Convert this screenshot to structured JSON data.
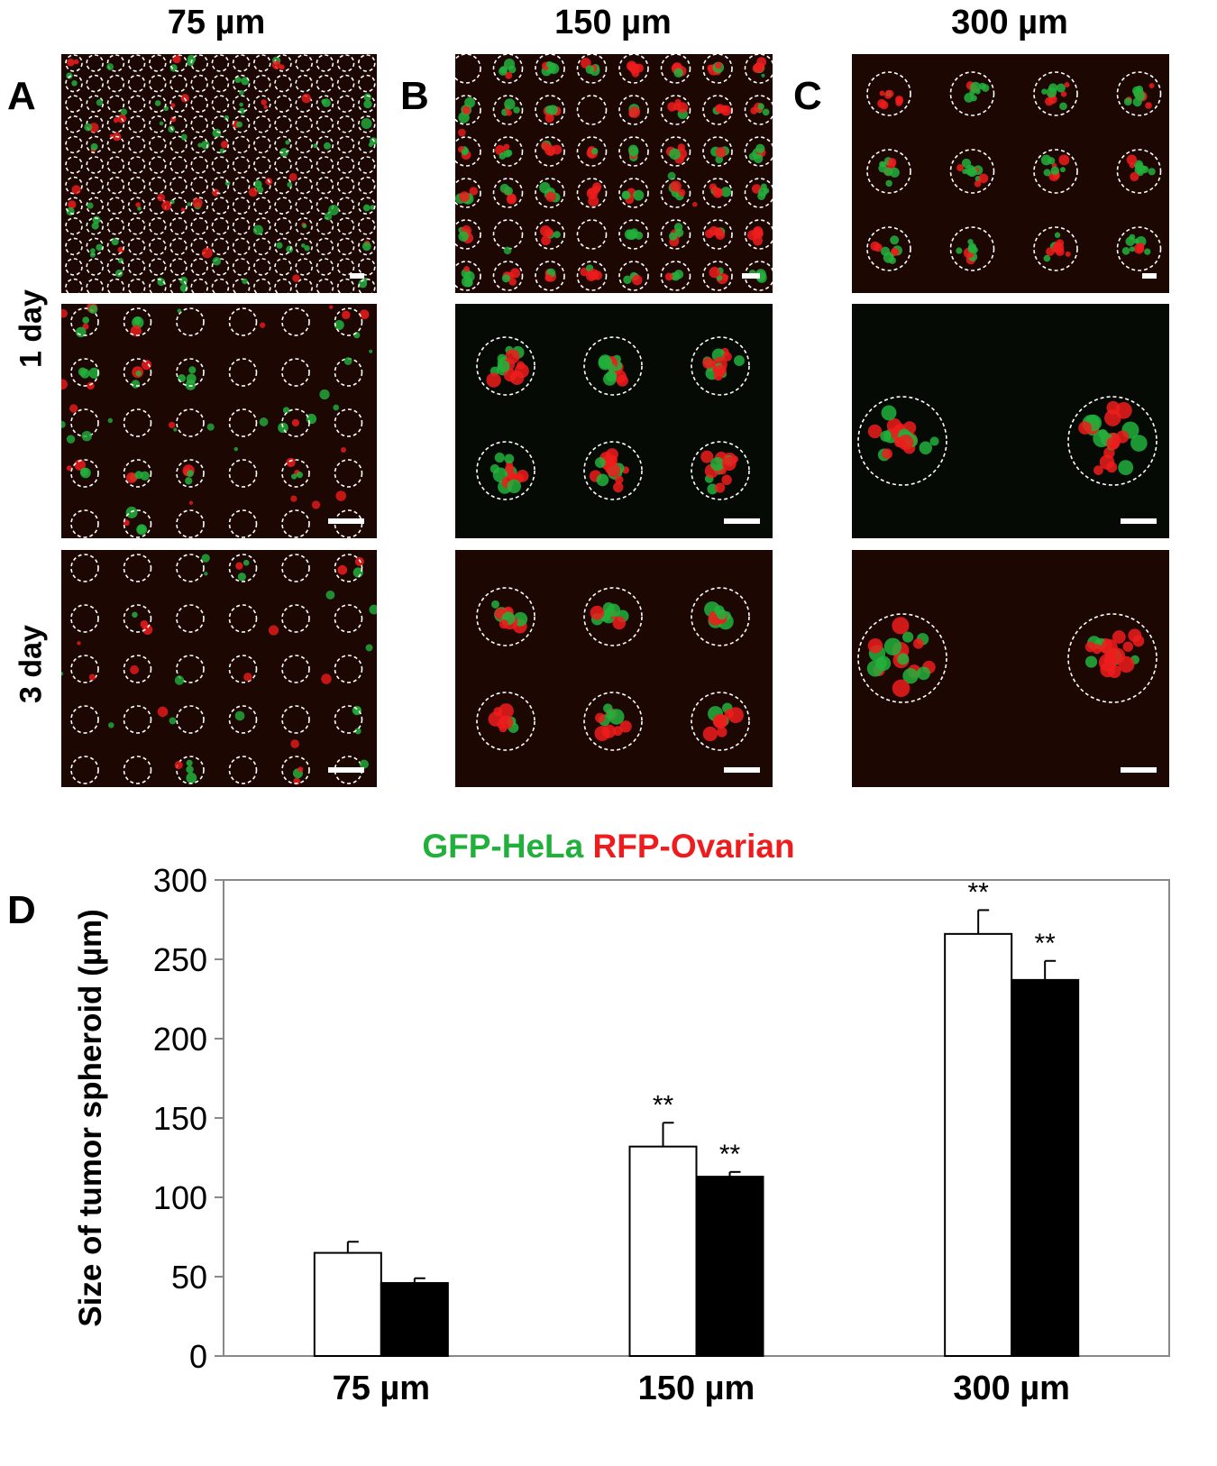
{
  "column_titles": [
    "75 µm",
    "150 µm",
    "300 µm"
  ],
  "panel_letters": [
    "A",
    "B",
    "C",
    "D"
  ],
  "row_labels": [
    "1 day",
    "3 day"
  ],
  "legend": {
    "gfp": "GFP-HeLa",
    "rfp": "RFP-Ovarian"
  },
  "colors": {
    "gfp": "#22b03c",
    "rfp": "#ee1c1c",
    "background": "#1c0703",
    "ring": "#ffffff"
  },
  "chart_data": {
    "type": "bar",
    "categories": [
      "75 µm",
      "150 µm",
      "300 µm"
    ],
    "series": [
      {
        "values": [
          65,
          132,
          266
        ],
        "errors": [
          7,
          15,
          15
        ],
        "significance": [
          "",
          "**",
          "**"
        ],
        "fill": "#ffffff"
      },
      {
        "values": [
          46,
          113,
          237
        ],
        "errors": [
          3,
          3,
          12
        ],
        "significance": [
          "",
          "**",
          "**"
        ],
        "fill": "#000000"
      }
    ],
    "ylabel": "Size of tumor spheroid (µm)",
    "xlabel": "",
    "ylim": [
      0,
      300
    ],
    "yticks": [
      0,
      50,
      100,
      150,
      200,
      250,
      300
    ],
    "grid": false
  }
}
